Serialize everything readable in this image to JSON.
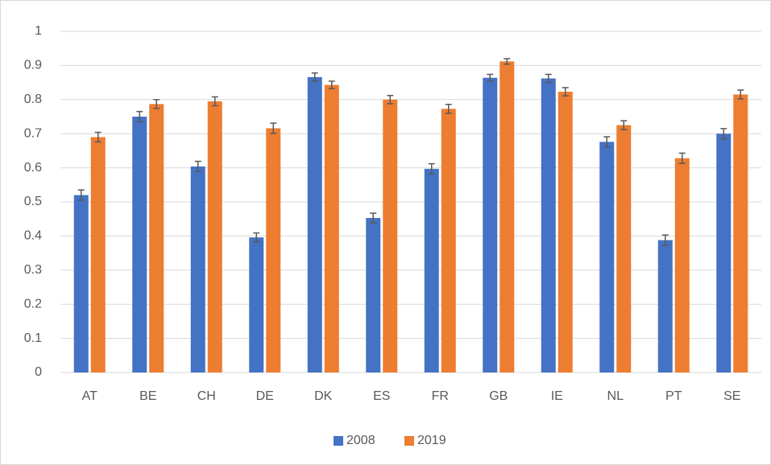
{
  "chart_data": {
    "type": "bar",
    "categories": [
      "AT",
      "BE",
      "CH",
      "DE",
      "DK",
      "ES",
      "FR",
      "GB",
      "IE",
      "NL",
      "PT",
      "SE"
    ],
    "series": [
      {
        "name": "2008",
        "color": "#4472c4",
        "values": [
          0.52,
          0.75,
          0.604,
          0.396,
          0.866,
          0.453,
          0.597,
          0.864,
          0.862,
          0.676,
          0.388,
          0.7
        ],
        "errors": [
          0.015,
          0.015,
          0.015,
          0.013,
          0.012,
          0.014,
          0.015,
          0.01,
          0.012,
          0.015,
          0.015,
          0.015
        ]
      },
      {
        "name": "2019",
        "color": "#ed7d31",
        "values": [
          0.69,
          0.787,
          0.795,
          0.716,
          0.843,
          0.8,
          0.773,
          0.912,
          0.823,
          0.725,
          0.628,
          0.815
        ],
        "errors": [
          0.014,
          0.013,
          0.013,
          0.015,
          0.011,
          0.012,
          0.013,
          0.008,
          0.012,
          0.013,
          0.015,
          0.013
        ]
      }
    ],
    "ylim": [
      0,
      1
    ],
    "yticks": [
      0,
      0.1,
      0.2,
      0.3,
      0.4,
      0.5,
      0.6,
      0.7,
      0.8,
      0.9,
      1
    ],
    "grid": true,
    "legend": "bottom"
  }
}
